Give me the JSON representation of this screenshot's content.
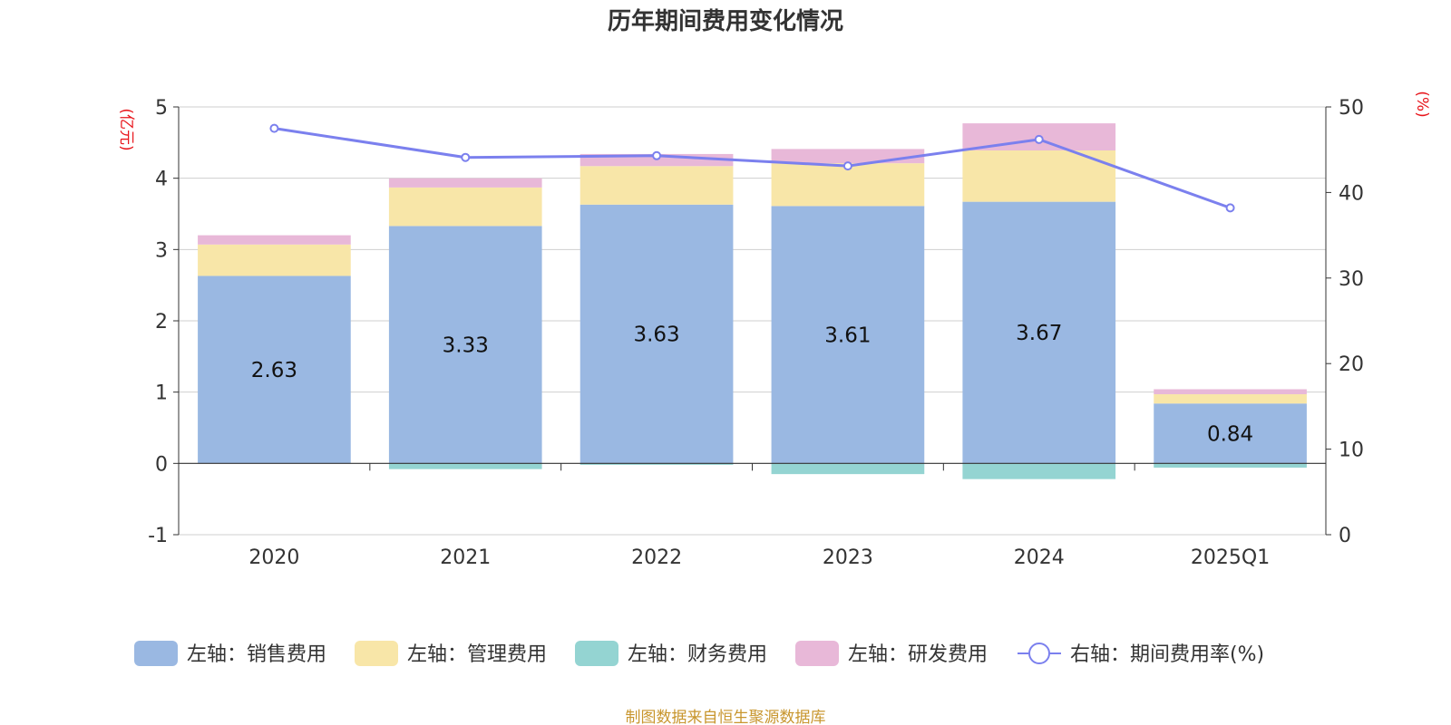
{
  "chart_data": {
    "type": "bar",
    "title": "历年期间费用变化情况",
    "left_unit": "(亿元)",
    "right_unit": "(%)",
    "categories": [
      "2020",
      "2021",
      "2022",
      "2023",
      "2024",
      "2025Q1"
    ],
    "left_ylim": [
      -1,
      5
    ],
    "left_ticks": [
      "-1",
      "0",
      "1",
      "2",
      "3",
      "4",
      "5"
    ],
    "right_ylim": [
      0,
      50
    ],
    "right_ticks": [
      "0",
      "10",
      "20",
      "30",
      "40",
      "50"
    ],
    "grid": true,
    "legend_position": "bottom",
    "series": [
      {
        "name": "左轴：销售费用",
        "type": "bar",
        "axis": "left",
        "color": "#9ab8e2",
        "values": [
          2.63,
          3.33,
          3.63,
          3.61,
          3.67,
          0.84
        ],
        "labels": [
          "2.63",
          "3.33",
          "3.63",
          "3.61",
          "3.67",
          "0.84"
        ]
      },
      {
        "name": "左轴：管理费用",
        "type": "bar",
        "axis": "left",
        "color": "#f8e6a8",
        "values": [
          0.44,
          0.54,
          0.54,
          0.6,
          0.72,
          0.13
        ]
      },
      {
        "name": "左轴：财务费用",
        "type": "bar",
        "axis": "left",
        "color": "#94d4d2",
        "values": [
          0.0,
          -0.08,
          -0.02,
          -0.15,
          -0.22,
          -0.06
        ]
      },
      {
        "name": "左轴：研发费用",
        "type": "bar",
        "axis": "left",
        "color": "#e8b8d8",
        "values": [
          0.13,
          0.13,
          0.17,
          0.2,
          0.38,
          0.07
        ]
      },
      {
        "name": "右轴：期间费用率(%)",
        "type": "line",
        "axis": "right",
        "color": "#7b80ee",
        "values": [
          47.5,
          44.1,
          44.3,
          43.1,
          46.2,
          38.2
        ]
      }
    ]
  },
  "source": "制图数据来自恒生聚源数据库"
}
